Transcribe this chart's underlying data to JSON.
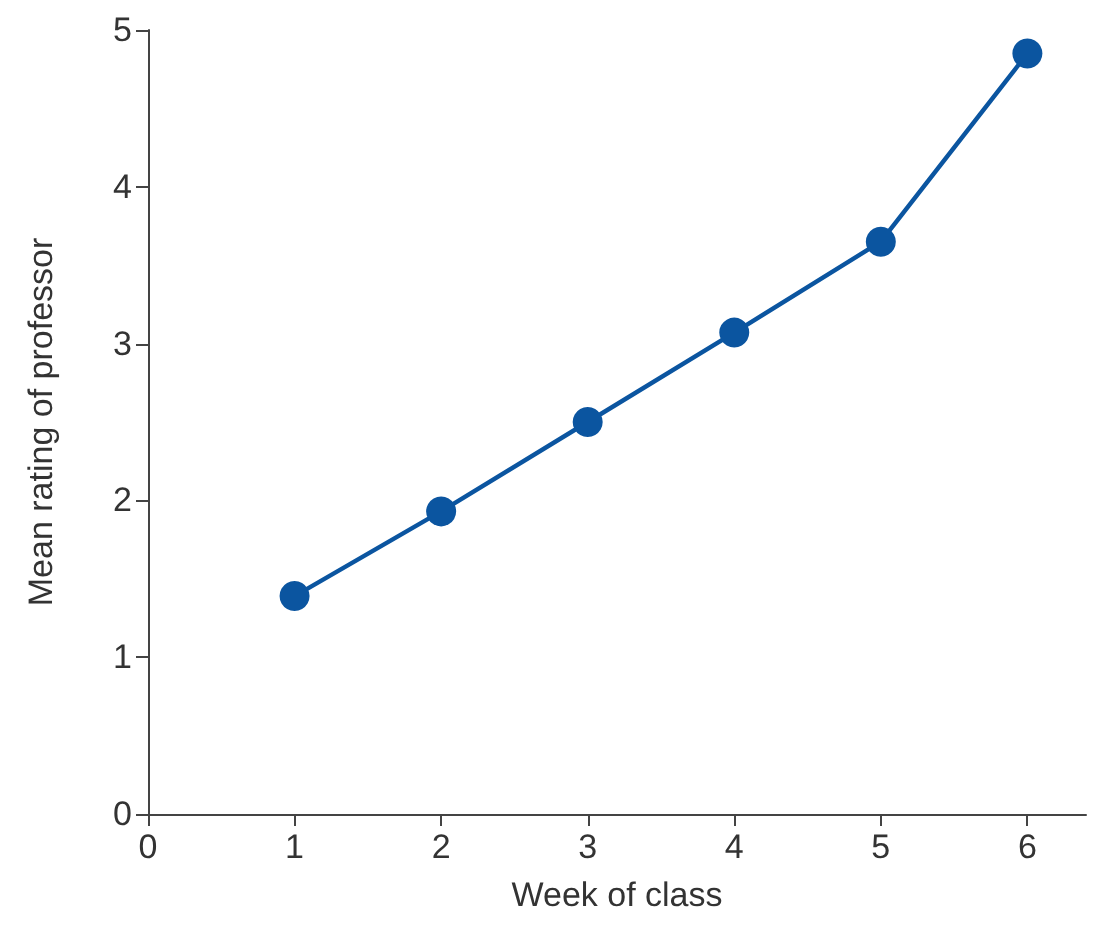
{
  "chart_data": {
    "type": "line",
    "xlabel": "Week of class",
    "ylabel": "Mean rating of professor",
    "x": [
      1,
      2,
      3,
      4,
      5,
      6
    ],
    "series": [
      {
        "color": "#0b55a0",
        "values": [
          1.39,
          1.93,
          2.5,
          3.07,
          3.65,
          4.85
        ]
      }
    ],
    "xlim": [
      0,
      6.4
    ],
    "xticks": [
      0,
      1,
      2,
      3,
      4,
      5,
      6
    ],
    "ylim": [
      0,
      5
    ],
    "yticks": [
      0,
      1,
      2,
      3,
      4,
      5
    ],
    "grid": false,
    "marker": "circle",
    "line_style": "solid"
  }
}
